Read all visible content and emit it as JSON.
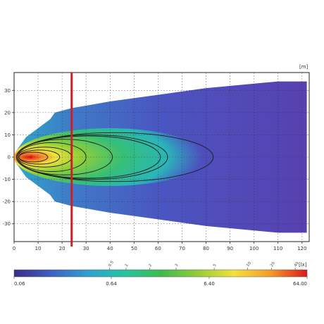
{
  "chart_data": {
    "type": "heatmap",
    "title": "",
    "xlabel": "",
    "ylabel": "",
    "x_unit": "[m]",
    "xlim": [
      0,
      123
    ],
    "ylim": [
      -38,
      38
    ],
    "x_ticks": [
      0,
      10,
      20,
      30,
      40,
      50,
      60,
      70,
      80,
      90,
      100,
      110,
      120
    ],
    "y_ticks": [
      30,
      20,
      10,
      0,
      -10,
      -20,
      -30
    ],
    "grid": true,
    "marker_line": {
      "x": 24,
      "color": "#cc1f2a"
    },
    "hotspot": {
      "x": 7,
      "y": 0,
      "color": "#d81b1b"
    },
    "beam_halfwidth_profile": [
      {
        "x": 1,
        "y": 3
      },
      {
        "x": 5,
        "y": 9
      },
      {
        "x": 10,
        "y": 13
      },
      {
        "x": 15,
        "y": 17
      },
      {
        "x": 17,
        "y": 20
      },
      {
        "x": 24,
        "y": 22
      },
      {
        "x": 40,
        "y": 25
      },
      {
        "x": 60,
        "y": 28
      },
      {
        "x": 80,
        "y": 31
      },
      {
        "x": 100,
        "y": 33
      },
      {
        "x": 110,
        "y": 34
      },
      {
        "x": 122,
        "y": 34
      }
    ],
    "isolux_lines": [
      {
        "x_start": 2,
        "x_end": 14,
        "halfheight": 2.2
      },
      {
        "x_start": 2,
        "x_end": 19,
        "halfheight": 3.2
      },
      {
        "x_start": 1.5,
        "x_end": 24,
        "halfheight": 4.5
      },
      {
        "x_start": 1.5,
        "x_end": 30,
        "halfheight": 6.5
      },
      {
        "x_start": 1,
        "x_end": 41,
        "halfheight": 8
      },
      {
        "x_start": 1,
        "x_end": 61,
        "halfheight": 9.5
      },
      {
        "x_start": 1,
        "x_end": 64,
        "halfheight": 10
      },
      {
        "x_start": 1,
        "x_end": 83,
        "halfheight": 11
      }
    ],
    "isolux_label_positions_m": [
      40,
      47,
      57,
      68,
      84,
      98,
      108,
      118
    ],
    "isolux_labels": [
      "0.5",
      "1",
      "2",
      "3",
      "5",
      "10",
      "20",
      "40"
    ],
    "colorbar": {
      "unit": "[lx]",
      "tick_labels": [
        "0.06",
        "0.64",
        "6.40",
        "64.00"
      ],
      "colors": [
        "#3a2c88",
        "#3f5fc2",
        "#2f9fd0",
        "#27c3a3",
        "#3dbb4c",
        "#93cc3a",
        "#f2e23a",
        "#f59a2c",
        "#d81b1b"
      ]
    }
  }
}
